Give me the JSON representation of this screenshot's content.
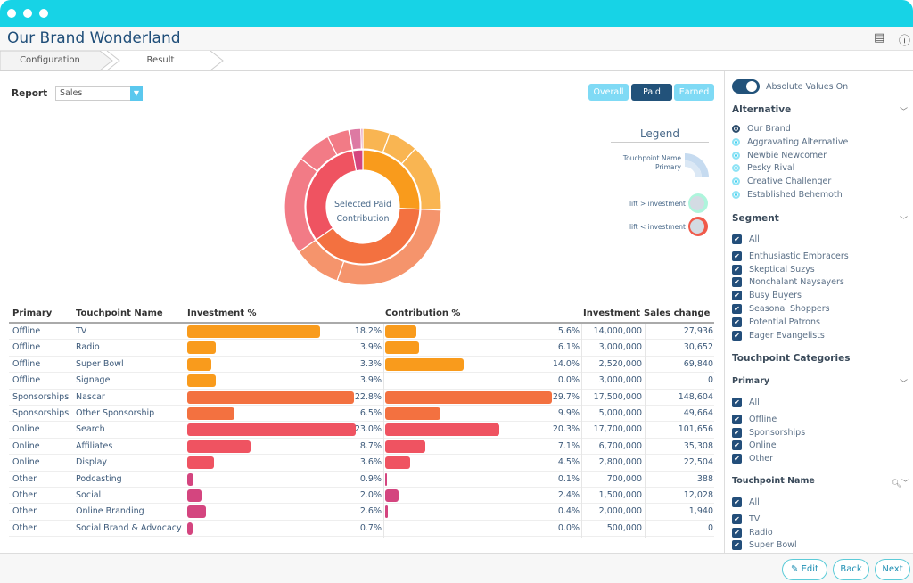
{
  "app": {
    "title": "Our Brand Wonderland",
    "icons": [
      "document-icon",
      "info-icon"
    ]
  },
  "tabs": [
    {
      "label": "Configuration"
    },
    {
      "label": "Result"
    }
  ],
  "report": {
    "label": "Report",
    "value": "Sales"
  },
  "view_buttons": [
    {
      "label": "Overall",
      "active": false
    },
    {
      "label": "Paid",
      "active": true
    },
    {
      "label": "Earned",
      "active": false
    }
  ],
  "donut": {
    "center_line1": "Selected Paid",
    "center_line2": "Contribution"
  },
  "legend": {
    "title": "Legend",
    "ring_outer": "Touchpoint Name",
    "ring_inner": "Primary",
    "lift_gt": "lift > investment",
    "lift_lt": "lift < investment"
  },
  "colors": {
    "Offline": [
      "#f99b1c",
      "#f9b552"
    ],
    "Sponsorships": [
      "#f37140",
      "#f5946c"
    ],
    "Online": [
      "#ef5361",
      "#f27b86"
    ],
    "Other": [
      "#d4457f",
      "#dd7aa3"
    ]
  },
  "table": {
    "headers": [
      "Primary",
      "Touchpoint Name",
      "Investment %",
      "Contribution %",
      "Investment",
      "Sales change"
    ],
    "rows": [
      [
        "Offline",
        "TV",
        "18.2%",
        "5.6%",
        "14,000,000",
        "27,936"
      ],
      [
        "Offline",
        "Radio",
        "3.9%",
        "6.1%",
        "3,000,000",
        "30,652"
      ],
      [
        "Offline",
        "Super Bowl",
        "3.3%",
        "14.0%",
        "2,520,000",
        "69,840"
      ],
      [
        "Offline",
        "Signage",
        "3.9%",
        "0.0%",
        "3,000,000",
        "0"
      ],
      [
        "Sponsorships",
        "Nascar",
        "22.8%",
        "29.7%",
        "17,500,000",
        "148,604"
      ],
      [
        "Sponsorships",
        "Other Sponsorship",
        "6.5%",
        "9.9%",
        "5,000,000",
        "49,664"
      ],
      [
        "Online",
        "Search",
        "23.0%",
        "20.3%",
        "17,700,000",
        "101,656"
      ],
      [
        "Online",
        "Affiliates",
        "8.7%",
        "7.1%",
        "6,700,000",
        "35,308"
      ],
      [
        "Online",
        "Display",
        "3.6%",
        "4.5%",
        "2,800,000",
        "22,504"
      ],
      [
        "Other",
        "Podcasting",
        "0.9%",
        "0.1%",
        "700,000",
        "388"
      ],
      [
        "Other",
        "Social",
        "2.0%",
        "2.4%",
        "1,500,000",
        "12,028"
      ],
      [
        "Other",
        "Online Branding",
        "2.6%",
        "0.4%",
        "2,000,000",
        "1,940"
      ],
      [
        "Other",
        "Social Brand & Advocacy",
        "0.7%",
        "0.0%",
        "500,000",
        "0"
      ]
    ]
  },
  "side": {
    "toggle": {
      "label": "Absolute Values On",
      "on": true
    },
    "alternative": {
      "title": "Alternative",
      "options": [
        "Our Brand",
        "Aggravating Alternative",
        "Newbie Newcomer",
        "Pesky Rival",
        "Creative Challenger",
        "Established Behemoth"
      ],
      "selected": "Our Brand"
    },
    "segment": {
      "title": "Segment",
      "options": [
        "All",
        "Enthusiastic Embracers",
        "Skeptical Suzys",
        "Nonchalant Naysayers",
        "Busy Buyers",
        "Seasonal Shoppers",
        "Potential Patrons",
        "Eager Evangelists"
      ]
    },
    "categories_title": "Touchpoint Categories",
    "primary": {
      "title": "Primary",
      "options": [
        "All",
        "Offline",
        "Sponsorships",
        "Online",
        "Other"
      ]
    },
    "touchpoint": {
      "title": "Touchpoint Name",
      "options": [
        "All",
        "TV",
        "Radio",
        "Super Bowl"
      ]
    }
  },
  "footer": {
    "edit": "Edit",
    "back": "Back",
    "next": "Next"
  }
}
